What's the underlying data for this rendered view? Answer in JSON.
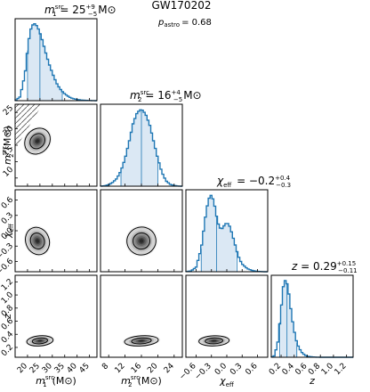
{
  "header": {
    "event": "GW170202",
    "pastro_symbol": "p",
    "pastro_subscript": "astro",
    "pastro_value": "= 0.68"
  },
  "colors": {
    "hist_line": "#1f77b4",
    "hist_fill": "#dbe8f4",
    "contour": "#000000",
    "density_dark": "#1e1e1e",
    "hatch": "#555555"
  },
  "chart_data": {
    "type": "corner",
    "parameters": [
      {
        "key": "m1",
        "label_symbol": "m",
        "label_sub": "1",
        "label_sup": "src",
        "unit": "(M⊙)",
        "estimate": {
          "median": "25",
          "plus": "+9",
          "minus": "−5",
          "unit": "M⊙"
        },
        "range": [
          15,
          48
        ],
        "ticks": [
          20,
          25,
          30,
          35,
          40,
          45
        ],
        "tick_labels": [
          "20",
          "25",
          "30",
          "35",
          "40",
          "45"
        ],
        "median_value": 25,
        "ci": [
          20,
          34
        ],
        "hist": {
          "x": [
            15,
            17,
            19,
            20,
            21,
            22,
            23,
            24,
            25,
            26,
            27,
            28,
            29,
            30,
            31,
            32,
            33,
            34,
            35,
            36,
            37,
            38,
            40,
            42,
            45,
            48
          ],
          "density": [
            0.0,
            0.05,
            0.35,
            0.65,
            0.9,
            0.98,
            1.0,
            0.96,
            0.88,
            0.78,
            0.66,
            0.55,
            0.45,
            0.36,
            0.28,
            0.21,
            0.16,
            0.12,
            0.09,
            0.065,
            0.045,
            0.03,
            0.015,
            0.006,
            0.002,
            0.0
          ]
        }
      },
      {
        "key": "m2",
        "label_symbol": "m",
        "label_sub": "2",
        "label_sup": "src",
        "unit": "(M⊙)",
        "estimate": {
          "median": "16",
          "plus": "+4",
          "minus": "−5",
          "unit": "M⊙"
        },
        "range": [
          6,
          26
        ],
        "ticks": [
          8,
          12,
          16,
          20,
          24
        ],
        "tick_labels": [
          "8",
          "12",
          "16",
          "20",
          "24"
        ],
        "median_value": 16,
        "ci": [
          11,
          20
        ],
        "hist": {
          "x": [
            6,
            7,
            8,
            9,
            10,
            11,
            12,
            13,
            14,
            15,
            16,
            17,
            18,
            19,
            20,
            21,
            22,
            23,
            24,
            25,
            26
          ],
          "density": [
            0.0,
            0.005,
            0.02,
            0.05,
            0.1,
            0.2,
            0.36,
            0.58,
            0.82,
            0.96,
            1.0,
            0.94,
            0.8,
            0.58,
            0.36,
            0.18,
            0.07,
            0.025,
            0.008,
            0.002,
            0.0
          ]
        }
      },
      {
        "key": "chi_eff",
        "label_symbol": "χ",
        "label_sub": "eff",
        "label_sup": "",
        "unit": "",
        "estimate": {
          "median": "−0.2",
          "plus": "+0.4",
          "minus": "−0.3",
          "unit": ""
        },
        "range": [
          -0.8,
          0.8
        ],
        "ticks": [
          -0.6,
          -0.3,
          0.0,
          0.3,
          0.6
        ],
        "tick_labels": [
          "−0.6",
          "−0.3",
          "0.0",
          "0.3",
          "0.6"
        ],
        "median_value": -0.2,
        "ci": [
          -0.5,
          0.2
        ],
        "hist": {
          "x": [
            -0.8,
            -0.7,
            -0.6,
            -0.5,
            -0.45,
            -0.4,
            -0.35,
            -0.3,
            -0.25,
            -0.2,
            -0.15,
            -0.1,
            -0.05,
            0.0,
            0.05,
            0.1,
            0.15,
            0.2,
            0.25,
            0.3,
            0.4,
            0.5,
            0.6,
            0.7,
            0.8
          ],
          "density": [
            0.0,
            0.01,
            0.06,
            0.3,
            0.55,
            0.8,
            0.95,
            1.0,
            0.9,
            0.72,
            0.58,
            0.55,
            0.6,
            0.64,
            0.6,
            0.5,
            0.38,
            0.26,
            0.16,
            0.1,
            0.04,
            0.015,
            0.005,
            0.001,
            0.0
          ]
        }
      },
      {
        "key": "z",
        "label_symbol": "z",
        "label_sub": "",
        "label_sup": "",
        "unit": "",
        "estimate": {
          "median": "0.29",
          "plus": "+0.15",
          "minus": "−0.11",
          "unit": ""
        },
        "range": [
          0.05,
          1.3
        ],
        "ticks": [
          0.2,
          0.4,
          0.6,
          0.8,
          1.0,
          1.2
        ],
        "tick_labels": [
          "0.2",
          "0.4",
          "0.6",
          "0.8",
          "1.0",
          "1.2"
        ],
        "median_value": 0.29,
        "ci": [
          0.18,
          0.44
        ],
        "hist": {
          "x": [
            0.05,
            0.1,
            0.15,
            0.2,
            0.23,
            0.26,
            0.29,
            0.32,
            0.35,
            0.38,
            0.41,
            0.44,
            0.48,
            0.52,
            0.56,
            0.6,
            0.7,
            0.8
          ],
          "density": [
            0.0,
            0.02,
            0.2,
            0.62,
            0.9,
            1.0,
            0.96,
            0.82,
            0.62,
            0.44,
            0.3,
            0.19,
            0.11,
            0.06,
            0.03,
            0.012,
            0.003,
            0.0
          ]
        }
      }
    ],
    "pairs": [
      {
        "x": "m1",
        "y": "m2",
        "center": [
          24,
          17
        ],
        "spread": [
          4.0,
          3.5
        ],
        "rho": -0.75,
        "hatched_region": "m2 > m1"
      },
      {
        "x": "m1",
        "y": "chi_eff",
        "center": [
          24,
          -0.2
        ],
        "spread": [
          4.0,
          0.28
        ],
        "rho": 0.3
      },
      {
        "x": "m2",
        "y": "chi_eff",
        "center": [
          16,
          -0.2
        ],
        "spread": [
          3.0,
          0.28
        ],
        "rho": 0.2
      },
      {
        "x": "m1",
        "y": "z",
        "center": [
          25,
          0.3
        ],
        "spread": [
          4.5,
          0.08
        ],
        "rho": 0.2
      },
      {
        "x": "m2",
        "y": "z",
        "center": [
          16,
          0.3
        ],
        "spread": [
          3.5,
          0.08
        ],
        "rho": 0.2
      },
      {
        "x": "chi_eff",
        "y": "z",
        "center": [
          -0.25,
          0.3
        ],
        "spread": [
          0.25,
          0.08
        ],
        "rho": 0.1
      }
    ],
    "y_axis": {
      "m2": {
        "ticks": [
          10,
          15,
          20,
          25
        ],
        "tick_labels": [
          "10",
          "15",
          "20",
          "25"
        ]
      },
      "chi_eff": {
        "ticks": [
          -0.6,
          -0.3,
          0.0,
          0.3,
          0.6
        ],
        "tick_labels": [
          "−0.6",
          "−0.3",
          "0.0",
          "0.3",
          "0.6"
        ]
      },
      "z": {
        "ticks": [
          0.2,
          0.4,
          0.6,
          0.8,
          1.0,
          1.2
        ],
        "tick_labels": [
          "0.2",
          "0.4",
          "0.6",
          "0.8",
          "1.0",
          "1.2"
        ]
      }
    }
  }
}
